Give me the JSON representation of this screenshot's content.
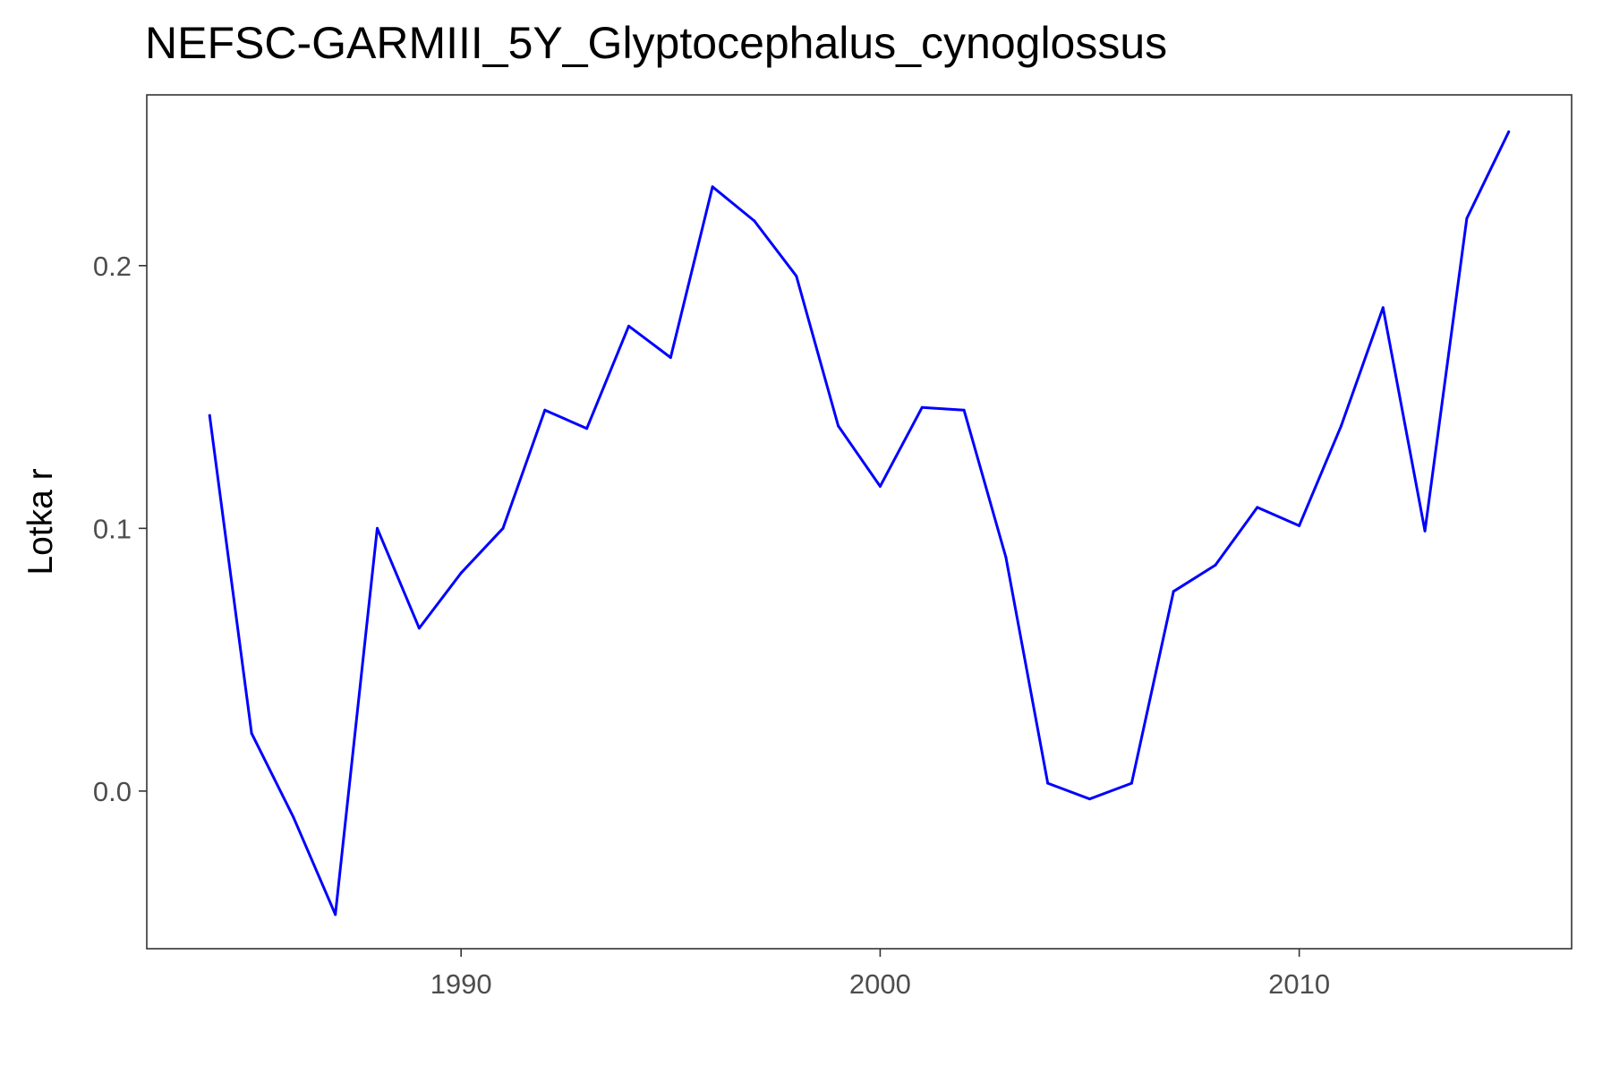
{
  "chart_data": {
    "type": "line",
    "title": "NEFSC-GARMIII_5Y_Glyptocephalus_cynoglossus",
    "xlabel": "",
    "ylabel": "Lotka r",
    "xlim": [
      1982.5,
      2016.5
    ],
    "ylim": [
      -0.06,
      0.265
    ],
    "x_ticks": [
      1990,
      2000,
      2010
    ],
    "x_tick_labels": [
      "1990",
      "2000",
      "2010"
    ],
    "y_ticks": [
      0.0,
      0.1,
      0.2
    ],
    "y_tick_labels": [
      "0.0",
      "0.1",
      "0.2"
    ],
    "grid": false,
    "legend": "none",
    "series": [
      {
        "color": "#0000ff",
        "x": [
          1984,
          1985,
          1986,
          1987,
          1988,
          1989,
          1990,
          1991,
          1992,
          1993,
          1994,
          1995,
          1996,
          1997,
          1998,
          1999,
          2000,
          2001,
          2002,
          2003,
          2004,
          2005,
          2006,
          2007,
          2008,
          2009,
          2010,
          2011,
          2012,
          2013,
          2014,
          2015
        ],
        "y": [
          0.143,
          0.022,
          -0.01,
          -0.047,
          0.1,
          0.062,
          0.083,
          0.1,
          0.145,
          0.138,
          0.177,
          0.165,
          0.23,
          0.217,
          0.196,
          0.139,
          0.116,
          0.146,
          0.145,
          0.089,
          0.003,
          -0.003,
          0.003,
          0.076,
          0.086,
          0.108,
          0.101,
          0.139,
          0.184,
          0.099,
          0.218,
          0.251
        ]
      }
    ]
  }
}
